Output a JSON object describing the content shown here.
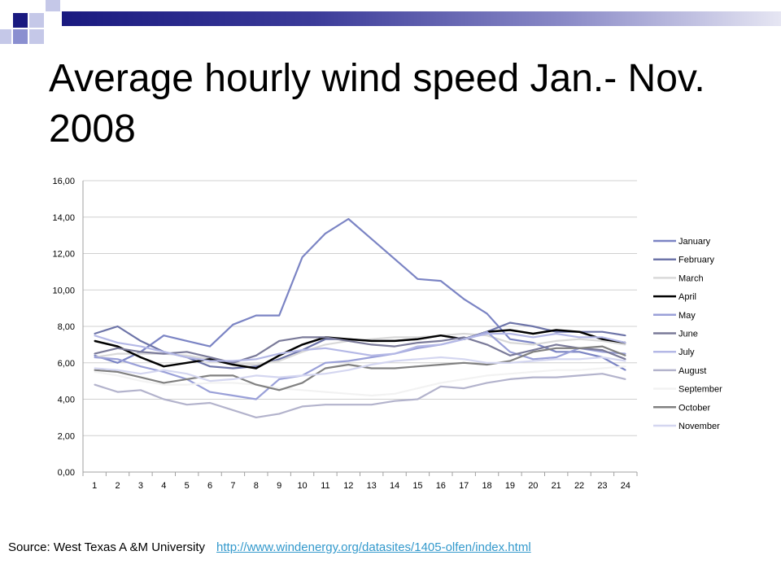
{
  "slide": {
    "title": "Average hourly wind speed Jan.- Nov. 2008",
    "source_label": "Source: West Texas A &M University",
    "source_link": "http://www.windenergy.org/datasites/1405-olfen/index.html"
  },
  "chart_data": {
    "type": "line",
    "title": "",
    "xlabel": "",
    "ylabel": "",
    "x": [
      1,
      2,
      3,
      4,
      5,
      6,
      7,
      8,
      9,
      10,
      11,
      12,
      13,
      14,
      15,
      16,
      17,
      18,
      19,
      20,
      21,
      22,
      23,
      24
    ],
    "y_ticks": [
      "0,00",
      "2,00",
      "4,00",
      "6,00",
      "8,00",
      "10,00",
      "12,00",
      "14,00",
      "16,00"
    ],
    "ylim": [
      0,
      16
    ],
    "grid": "horizontal",
    "legend_position": "right",
    "series": [
      {
        "name": "January",
        "color": "#7b84c4",
        "values": [
          6.4,
          6.0,
          6.6,
          7.5,
          7.2,
          6.9,
          8.1,
          8.6,
          8.6,
          11.8,
          13.1,
          13.9,
          12.8,
          11.7,
          10.6,
          10.5,
          9.5,
          8.7,
          7.3,
          7.1,
          6.6,
          6.6,
          6.3,
          5.6
        ]
      },
      {
        "name": "February",
        "color": "#6d74a8",
        "values": [
          7.6,
          8.0,
          7.2,
          6.6,
          6.3,
          5.8,
          5.7,
          5.8,
          6.2,
          6.7,
          7.3,
          7.3,
          7.2,
          7.2,
          7.3,
          7.5,
          7.3,
          7.7,
          8.2,
          8.0,
          7.7,
          7.7,
          7.7,
          7.5
        ]
      },
      {
        "name": "March",
        "color": "#d9d9d9",
        "values": [
          6.3,
          6.5,
          6.5,
          6.5,
          6.4,
          6.2,
          6.0,
          5.9,
          6.1,
          6.6,
          7.0,
          7.2,
          7.3,
          7.4,
          7.4,
          7.5,
          7.6,
          7.5,
          7.1,
          7.0,
          7.2,
          7.3,
          7.2,
          7.0
        ]
      },
      {
        "name": "April",
        "color": "#000000",
        "values": [
          7.2,
          6.9,
          6.3,
          5.8,
          6.0,
          6.2,
          5.9,
          5.7,
          6.4,
          7.0,
          7.4,
          7.3,
          7.2,
          7.2,
          7.3,
          7.5,
          7.3,
          7.7,
          7.8,
          7.6,
          7.8,
          7.7,
          7.3,
          7.1
        ]
      },
      {
        "name": "May",
        "color": "#9aa0d8",
        "values": [
          6.3,
          6.2,
          5.8,
          5.5,
          5.1,
          4.4,
          4.2,
          4.0,
          5.1,
          5.3,
          6.0,
          6.1,
          6.3,
          6.5,
          6.8,
          7.0,
          7.3,
          7.7,
          6.6,
          6.2,
          6.3,
          6.8,
          6.6,
          6.5
        ]
      },
      {
        "name": "June",
        "color": "#7a7a99",
        "values": [
          6.5,
          6.8,
          6.6,
          6.5,
          6.6,
          6.3,
          6.0,
          6.4,
          7.2,
          7.4,
          7.4,
          7.2,
          7.0,
          6.9,
          7.1,
          7.2,
          7.4,
          7.0,
          6.4,
          6.7,
          7.0,
          6.8,
          6.7,
          6.2
        ]
      },
      {
        "name": "July",
        "color": "#b4b8e6",
        "values": [
          7.5,
          7.1,
          6.9,
          6.6,
          6.3,
          6.1,
          6.1,
          6.2,
          6.5,
          6.7,
          6.8,
          6.6,
          6.4,
          6.5,
          6.9,
          7.0,
          7.3,
          7.6,
          7.6,
          7.4,
          7.6,
          7.4,
          7.4,
          7.1
        ]
      },
      {
        "name": "August",
        "color": "#b3b3cc",
        "values": [
          4.8,
          4.4,
          4.5,
          4.0,
          3.7,
          3.8,
          3.4,
          3.0,
          3.2,
          3.6,
          3.7,
          3.7,
          3.7,
          3.9,
          4.0,
          4.7,
          4.6,
          4.9,
          5.1,
          5.2,
          5.2,
          5.3,
          5.4,
          5.1
        ]
      },
      {
        "name": "September",
        "color": "#f2f2f2",
        "values": [
          5.5,
          5.3,
          5.0,
          4.8,
          4.8,
          4.9,
          4.9,
          4.8,
          4.6,
          4.5,
          4.4,
          4.3,
          4.2,
          4.3,
          4.6,
          4.9,
          5.1,
          5.3,
          5.4,
          5.5,
          5.6,
          5.6,
          5.7,
          5.8
        ]
      },
      {
        "name": "October",
        "color": "#808080",
        "values": [
          5.6,
          5.5,
          5.2,
          4.9,
          5.1,
          5.3,
          5.3,
          4.8,
          4.5,
          4.9,
          5.7,
          5.9,
          5.7,
          5.7,
          5.8,
          5.9,
          6.0,
          5.9,
          6.1,
          6.6,
          6.8,
          6.8,
          6.9,
          6.4
        ]
      },
      {
        "name": "November",
        "color": "#d4d6f0",
        "values": [
          5.7,
          5.6,
          5.4,
          5.6,
          5.4,
          5.0,
          5.1,
          5.3,
          5.2,
          5.3,
          5.4,
          5.6,
          5.9,
          6.1,
          6.2,
          6.3,
          6.2,
          6.0,
          6.0,
          6.1,
          6.2,
          6.2,
          6.3,
          6.1
        ]
      }
    ]
  }
}
